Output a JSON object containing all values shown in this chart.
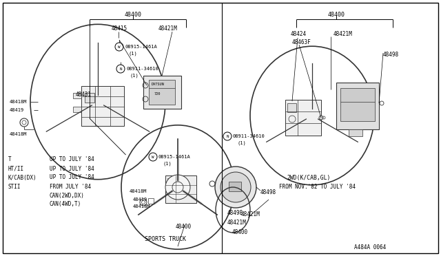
{
  "bg_color": "#ffffff",
  "lc": "#000000",
  "dc": "#333333",
  "figsize": [
    6.4,
    3.72
  ],
  "dpi": 100,
  "legend": [
    [
      "T",
      "UP TO JULY '84"
    ],
    [
      "HT/II",
      "UP TO JULY '84"
    ],
    [
      "K/CAB(DX)",
      "UP TO JULY '84"
    ],
    [
      "STII",
      "FROM JULY '84"
    ],
    [
      "",
      "CAN(2WD,DX)"
    ],
    [
      "",
      "CAN(4WD,T)"
    ]
  ],
  "diagram_id": "A484A 0064"
}
